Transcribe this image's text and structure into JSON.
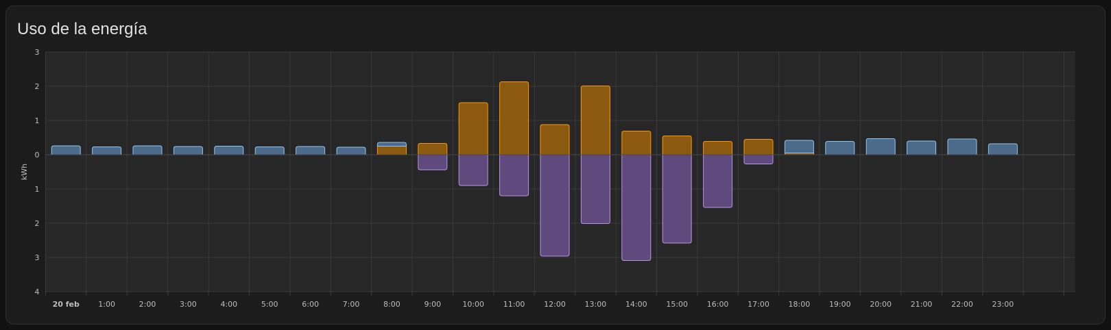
{
  "card": {
    "title": "Uso de la energía"
  },
  "colors": {
    "background": "#1c1c1c",
    "grid": "#3a3a3a",
    "grid_fill": "rgba(255,255,255,0.05)",
    "grid_consumption_fill": "#4c6b8a",
    "grid_consumption_stroke": "#8fc7f0",
    "solar_fill": "#8b5a10",
    "solar_stroke": "#ff9800",
    "return_fill": "#5e4a7c",
    "return_stroke": "#b794e6"
  },
  "chart_data": {
    "type": "bar",
    "stacked": true,
    "ylabel": "kWh",
    "ylim": [
      -4,
      3
    ],
    "yticks": [
      3,
      2,
      1,
      0,
      -1,
      -2,
      -3,
      -4
    ],
    "ytick_labels": [
      "3",
      "2",
      "1",
      "0",
      "1",
      "2",
      "3",
      "4"
    ],
    "categories": [
      "20 feb",
      "1:00",
      "2:00",
      "3:00",
      "4:00",
      "5:00",
      "6:00",
      "7:00",
      "8:00",
      "9:00",
      "10:00",
      "11:00",
      "12:00",
      "13:00",
      "14:00",
      "15:00",
      "16:00",
      "17:00",
      "18:00",
      "19:00",
      "20:00",
      "21:00",
      "22:00",
      "23:00"
    ],
    "series": [
      {
        "key": "solar",
        "values": [
          0,
          0,
          0,
          0,
          0,
          0,
          0,
          0,
          0.25,
          0.33,
          1.52,
          2.13,
          0.88,
          2.01,
          0.69,
          0.55,
          0.39,
          0.45,
          0.05,
          0,
          0,
          0,
          0,
          0
        ]
      },
      {
        "key": "grid",
        "values": [
          0.26,
          0.23,
          0.26,
          0.24,
          0.25,
          0.23,
          0.24,
          0.22,
          0.11,
          0,
          0,
          0,
          0,
          0,
          0,
          0,
          0,
          0,
          0.37,
          0.39,
          0.47,
          0.4,
          0.46,
          0.32
        ]
      },
      {
        "key": "return",
        "values": [
          0,
          0,
          0,
          0,
          0,
          0,
          0,
          0,
          0,
          -0.44,
          -0.9,
          -1.2,
          -2.96,
          -2.01,
          -3.09,
          -2.58,
          -1.54,
          -0.27,
          0,
          0,
          0,
          0,
          0,
          0
        ]
      }
    ]
  }
}
